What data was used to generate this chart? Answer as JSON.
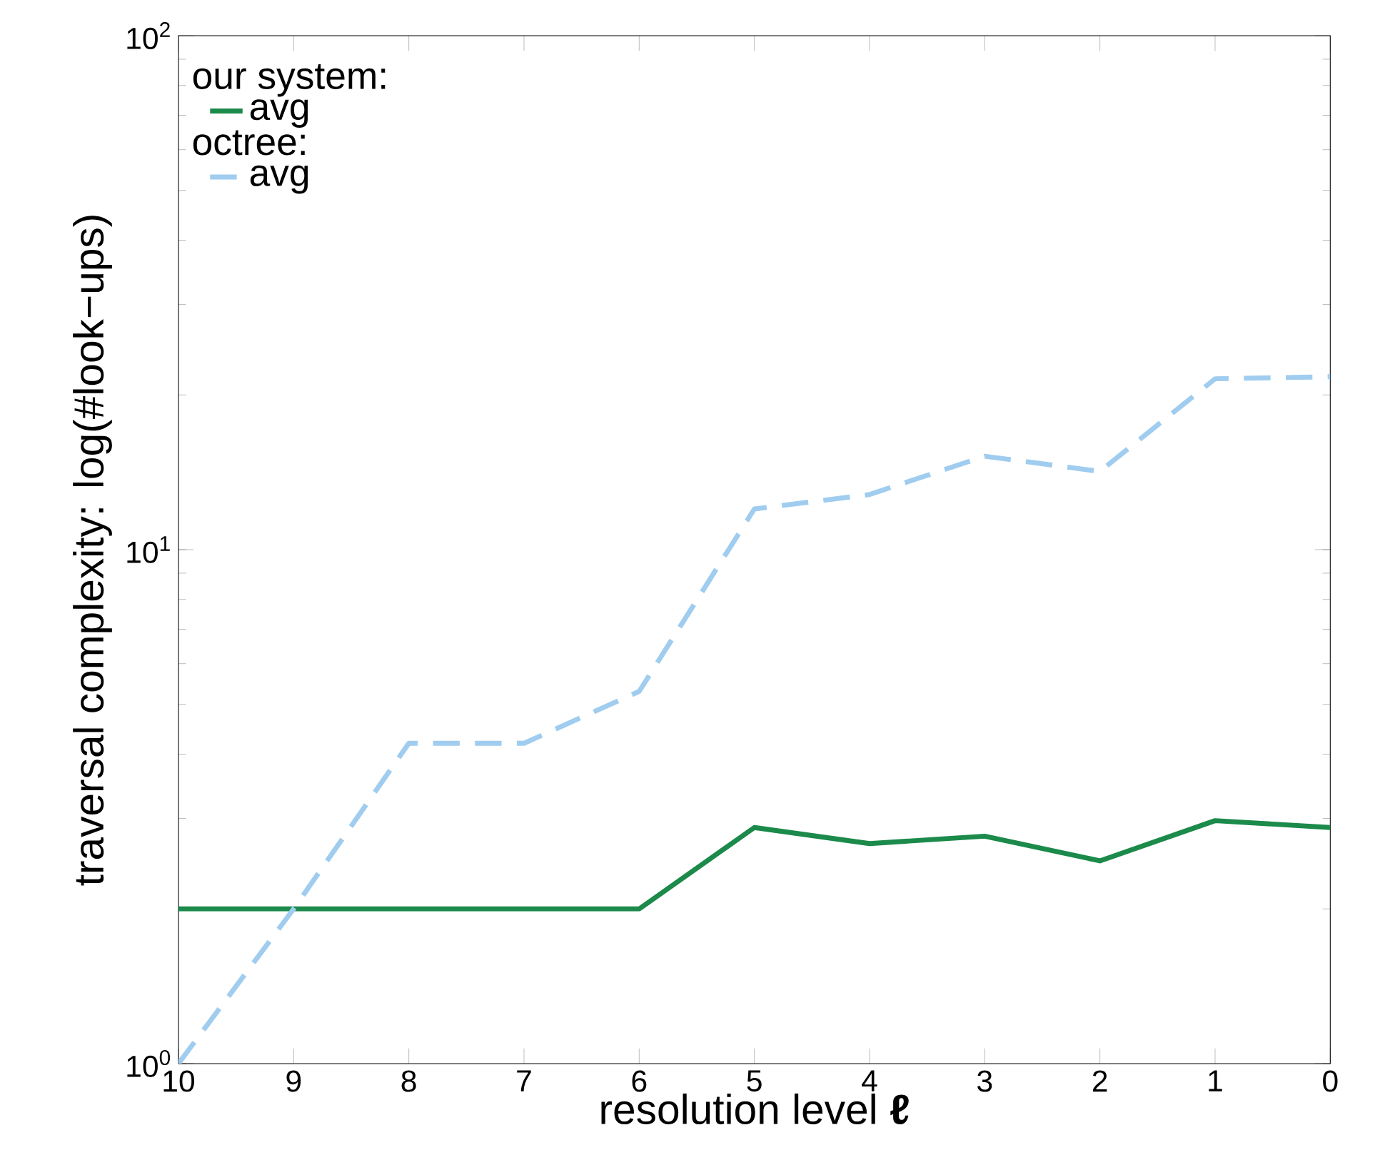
{
  "chart_data": {
    "type": "line",
    "xlabel": "resolution level **ℓ**",
    "ylabel": "traversal complexity: log(#look−ups)",
    "x": [
      10,
      9,
      8,
      7,
      6,
      5,
      4,
      3,
      2,
      1,
      0
    ],
    "log": "y",
    "xlim": [
      10,
      0
    ],
    "ylim": [
      1,
      100
    ],
    "xticks": [
      10,
      9,
      8,
      7,
      6,
      5,
      4,
      3,
      2,
      1,
      0
    ],
    "yticks": [
      {
        "value": 1,
        "label": "10$^{0}$"
      },
      {
        "value": 10,
        "label": "10$^{1}$"
      },
      {
        "value": 100,
        "label": "10$^{2}$"
      }
    ],
    "grid": false,
    "legend": "top left",
    "marker": "none",
    "annotations": [
      "our system:",
      "octree:"
    ],
    "series": [
      {
        "name": "avg",
        "color": "#1b8a4a",
        "line_style": "solid",
        "values": [
          2,
          2,
          2,
          2,
          2,
          2.88,
          2.68,
          2.77,
          2.48,
          2.97,
          2.88
        ]
      },
      {
        "name": "avg",
        "color": "#a0cdef",
        "line_style": "dashed",
        "values": [
          1,
          2,
          4.2,
          4.2,
          5.3,
          12,
          12.8,
          15.2,
          14.2,
          21.5,
          21.7
        ]
      }
    ]
  }
}
